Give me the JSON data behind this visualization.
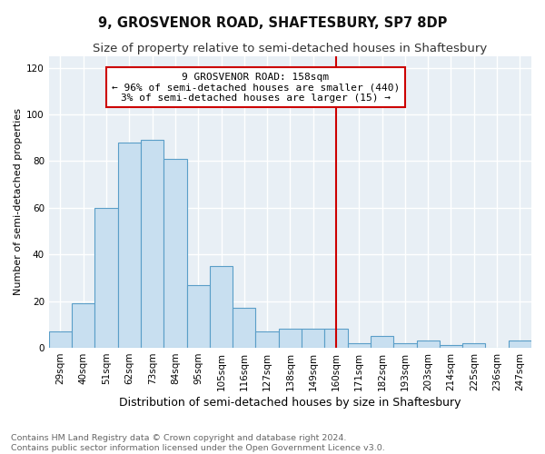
{
  "title": "9, GROSVENOR ROAD, SHAFTESBURY, SP7 8DP",
  "subtitle": "Size of property relative to semi-detached houses in Shaftesbury",
  "xlabel": "Distribution of semi-detached houses by size in Shaftesbury",
  "ylabel": "Number of semi-detached properties",
  "footer_line1": "Contains HM Land Registry data © Crown copyright and database right 2024.",
  "footer_line2": "Contains public sector information licensed under the Open Government Licence v3.0.",
  "bar_labels": [
    "29sqm",
    "40sqm",
    "51sqm",
    "62sqm",
    "73sqm",
    "84sqm",
    "95sqm",
    "105sqm",
    "116sqm",
    "127sqm",
    "138sqm",
    "149sqm",
    "160sqm",
    "171sqm",
    "182sqm",
    "193sqm",
    "203sqm",
    "214sqm",
    "225sqm",
    "236sqm",
    "247sqm"
  ],
  "bar_values": [
    7,
    19,
    60,
    88,
    89,
    81,
    27,
    35,
    17,
    7,
    8,
    8,
    8,
    2,
    5,
    2,
    3,
    1,
    2,
    0,
    3
  ],
  "bar_color": "#c8dff0",
  "bar_edge_color": "#5a9ec8",
  "property_line_x": 12,
  "property_line_label": "9 GROSVENOR ROAD: 158sqm",
  "pct_smaller": "96%",
  "n_smaller": 440,
  "pct_larger": "3%",
  "n_larger": 15,
  "vline_color": "#cc0000",
  "annotation_box_color": "#cc0000",
  "ylim": [
    0,
    125
  ],
  "yticks": [
    0,
    20,
    40,
    60,
    80,
    100,
    120
  ],
  "background_color": "#ffffff",
  "plot_bg_color": "#e8eff5",
  "grid_color": "#ffffff",
  "title_fontsize": 10.5,
  "subtitle_fontsize": 9.5,
  "xlabel_fontsize": 9,
  "ylabel_fontsize": 8,
  "tick_fontsize": 7.5,
  "footer_fontsize": 6.8,
  "ann_fontsize": 8
}
